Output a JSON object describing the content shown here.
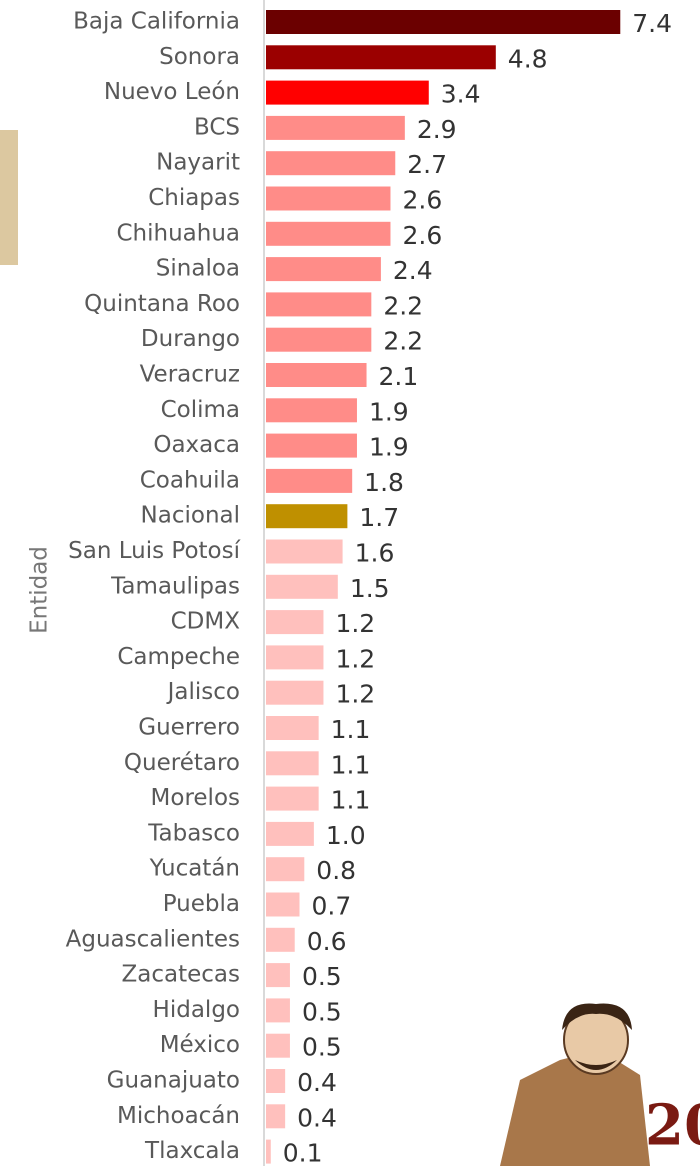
{
  "chart_data": {
    "type": "bar",
    "orientation": "horizontal",
    "y_axis_label": "Entidad",
    "categories": [
      "Baja California",
      "Sonora",
      "Nuevo León",
      "BCS",
      "Nayarit",
      "Chiapas",
      "Chihuahua",
      "Sinaloa",
      "Quintana Roo",
      "Durango",
      "Veracruz",
      "Colima",
      "Oaxaca",
      "Coahuila",
      "Nacional",
      "San Luis Potosí",
      "Tamaulipas",
      "CDMX",
      "Campeche",
      "Jalisco",
      "Guerrero",
      "Querétaro",
      "Morelos",
      "Tabasco",
      "Yucatán",
      "Puebla",
      "Aguascalientes",
      "Zacatecas",
      "Hidalgo",
      "México",
      "Guanajuato",
      "Michoacán",
      "Tlaxcala"
    ],
    "values": [
      7.4,
      4.8,
      3.4,
      2.9,
      2.7,
      2.6,
      2.6,
      2.4,
      2.2,
      2.2,
      2.1,
      1.9,
      1.9,
      1.8,
      1.7,
      1.6,
      1.5,
      1.2,
      1.2,
      1.2,
      1.1,
      1.1,
      1.1,
      1.0,
      0.8,
      0.7,
      0.6,
      0.5,
      0.5,
      0.5,
      0.4,
      0.4,
      0.1
    ],
    "value_labels": [
      "7.4",
      "4.8",
      "3.4",
      "2.9",
      "2.7",
      "2.6",
      "2.6",
      "2.4",
      "2.2",
      "2.2",
      "2.1",
      "1.9",
      "1.9",
      "1.8",
      "1.7",
      "1.6",
      "1.5",
      "1.2",
      "1.2",
      "1.2",
      "1.1",
      "1.1",
      "1.1",
      "1.0",
      "0.8",
      "0.7",
      "0.6",
      "0.5",
      "0.5",
      "0.5",
      "0.4",
      "0.4",
      "0.1"
    ],
    "colors": [
      "#6b0000",
      "#9b0000",
      "#ff0000",
      "#ff8c88",
      "#ff8c88",
      "#ff8c88",
      "#ff8c88",
      "#ff8c88",
      "#ff8c88",
      "#ff8c88",
      "#ff8c88",
      "#ff8c88",
      "#ff8c88",
      "#ff8c88",
      "#bf9000",
      "#ffc0bd",
      "#ffc0bd",
      "#ffc0bd",
      "#ffc0bd",
      "#ffc0bd",
      "#ffc0bd",
      "#ffc0bd",
      "#ffc0bd",
      "#ffc0bd",
      "#ffc0bd",
      "#ffc0bd",
      "#ffc0bd",
      "#ffc0bd",
      "#ffc0bd",
      "#ffc0bd",
      "#ffc0bd",
      "#ffc0bd",
      "#ffc0bd"
    ],
    "xlim": [
      0,
      8
    ]
  }
}
